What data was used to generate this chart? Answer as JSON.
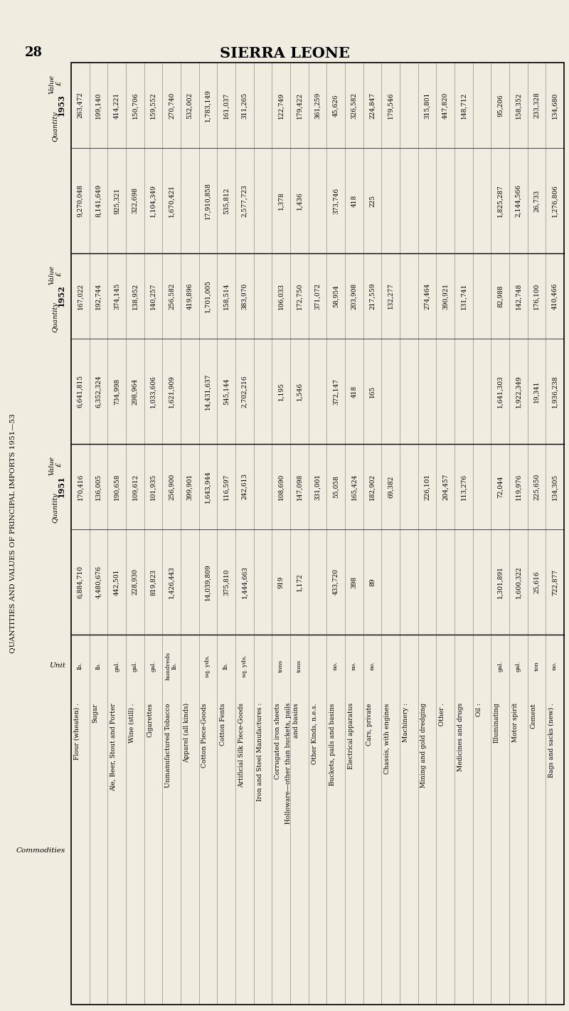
{
  "page_number": "28",
  "title": "SIERRA LEONE",
  "table_title": "QUANTITIES AND VALUES OF PRINCIPAL IMPORTS 1951—53",
  "background_color": "#f0ede0",
  "rows": [
    {
      "commodity": "Flour (wheaten) .",
      "unit": "lb.",
      "q51": "6,884,710",
      "v51": "170,416",
      "q52": "6,641,815",
      "v52": "167,022",
      "q53": "9,270,048",
      "v53": "263,472"
    },
    {
      "commodity": "Sugar",
      "unit": "lb.",
      "q51": "4,480,676",
      "v51": "136,005",
      "q52": "6,352,324",
      "v52": "192,744",
      "q53": "8,141,649",
      "v53": "199,140"
    },
    {
      "commodity": "Ale, Beer, Stout and Porter",
      "unit": "gal.",
      "q51": "442,501",
      "v51": "190,658",
      "q52": "734,998",
      "v52": "374,145",
      "q53": "925,321",
      "v53": "414,221"
    },
    {
      "commodity": "Wine (still) .",
      "unit": "gal.",
      "q51": "228,930",
      "v51": "109,612",
      "q52": "298,964",
      "v52": "138,952",
      "q53": "322,698",
      "v53": "150,706"
    },
    {
      "commodity": "Cigarettes",
      "unit": "gal.",
      "q51": "819,823",
      "v51": "101,935",
      "q52": "1,033,606",
      "v52": "140,257",
      "q53": "1,104,349",
      "v53": "159,552"
    },
    {
      "commodity": "Unmanufactured Tobacco",
      "unit": "hundreds\nlb.",
      "q51": "1,426,443",
      "v51": "256,900",
      "q52": "1,621,909",
      "v52": "256,582",
      "q53": "1,670,421",
      "v53": "270,740"
    },
    {
      "commodity": "Apparel (all kinds)",
      "unit": "",
      "q51": "",
      "v51": "399,901",
      "q52": "",
      "v52": "419,896",
      "q53": "",
      "v53": "532,002"
    },
    {
      "commodity": "Cotton Piece-Goods",
      "unit": "sq. yds.",
      "q51": "14,039,809",
      "v51": "1,643,944",
      "q52": "14,431,637",
      "v52": "1,701,005",
      "q53": "17,910,858",
      "v53": "1,783,149"
    },
    {
      "commodity": "Cotton Fents",
      "unit": "lb.",
      "q51": "375,810",
      "v51": "116,597",
      "q52": "545,144",
      "v52": "158,514",
      "q53": "535,812",
      "v53": "161,037"
    },
    {
      "commodity": "Artificial Silk Piece-Goods",
      "unit": "sq. yds.",
      "q51": "1,444,663",
      "v51": "242,613",
      "q52": "2,702,216",
      "v52": "383,970",
      "q53": "2,577,723",
      "v53": "311,265"
    },
    {
      "commodity": "Iron and Steel Manufactures :",
      "unit": "",
      "q51": "",
      "v51": "",
      "q52": "",
      "v52": "",
      "q53": "",
      "v53": ""
    },
    {
      "commodity": "  Corrugated iron sheets",
      "unit": "tons",
      "q51": "919",
      "v51": "108,690",
      "q52": "1,195",
      "v52": "106,033",
      "q53": "1,378",
      "v53": "122,749"
    },
    {
      "commodity": "  Holloware—other than buckets, pails\n  and basins",
      "unit": "tons",
      "q51": "1,172",
      "v51": "147,098",
      "q52": "1,546",
      "v52": "172,750",
      "q53": "1,436",
      "v53": "179,422"
    },
    {
      "commodity": "  Other Kinds, n.e.s.",
      "unit": "",
      "q51": "",
      "v51": "331,001",
      "q52": "",
      "v52": "371,072",
      "q53": "",
      "v53": "361,259"
    },
    {
      "commodity": "  Buckets, pails and basins",
      "unit": "no.",
      "q51": "433,720",
      "v51": "55,058",
      "q52": "372,147",
      "v52": "58,954",
      "q53": "373,746",
      "v53": "45,626"
    },
    {
      "commodity": "Electrical apparatus",
      "unit": "no.",
      "q51": "398",
      "v51": "165,424",
      "q52": "418",
      "v52": "203,908",
      "q53": "418",
      "v53": "326,582"
    },
    {
      "commodity": "Cars, private",
      "unit": "no.",
      "q51": "89",
      "v51": "182,902",
      "q52": "165",
      "v52": "217,559",
      "q53": "225",
      "v53": "224,847"
    },
    {
      "commodity": "Chassis, with engines",
      "unit": "",
      "q51": "",
      "v51": "69,382",
      "q52": "",
      "v52": "132,277",
      "q53": "",
      "v53": "179,546"
    },
    {
      "commodity": "Machinery :",
      "unit": "",
      "q51": "",
      "v51": "",
      "q52": "",
      "v52": "",
      "q53": "",
      "v53": ""
    },
    {
      "commodity": "  Mining and gold dredging",
      "unit": "",
      "q51": "",
      "v51": "226,101",
      "q52": "",
      "v52": "274,464",
      "q53": "",
      "v53": "315,801"
    },
    {
      "commodity": "  Other .",
      "unit": "",
      "q51": "",
      "v51": "204,457",
      "q52": "",
      "v52": "390,921",
      "q53": "",
      "v53": "447,820"
    },
    {
      "commodity": "Medicines and drugs",
      "unit": "",
      "q51": "",
      "v51": "113,276",
      "q52": "",
      "v52": "131,741",
      "q53": "",
      "v53": "148,712"
    },
    {
      "commodity": "Oil :",
      "unit": "",
      "q51": "",
      "v51": "",
      "q52": "",
      "v52": "",
      "q53": "",
      "v53": ""
    },
    {
      "commodity": "  Illuminating",
      "unit": "gal.",
      "q51": "1,301,891",
      "v51": "72,044",
      "q52": "1,641,303",
      "v52": "82,988",
      "q53": "1,825,287",
      "v53": "95,206"
    },
    {
      "commodity": "  Motor spirit",
      "unit": "gal.",
      "q51": "1,600,322",
      "v51": "119,976",
      "q52": "1,922,349",
      "v52": "142,748",
      "q53": "2,144,566",
      "v53": "158,352"
    },
    {
      "commodity": "Cement",
      "unit": "ton",
      "q51": "25,616",
      "v51": "225,650",
      "q52": "19,341",
      "v52": "176,100",
      "q53": "26,733",
      "v53": "233,328"
    },
    {
      "commodity": "Bags and sacks (new) .",
      "unit": "no.",
      "q51": "722,877",
      "v51": "134,305",
      "q52": "1,936,238",
      "v52": "410,466",
      "q53": "1,276,806",
      "v53": "134,680"
    }
  ]
}
